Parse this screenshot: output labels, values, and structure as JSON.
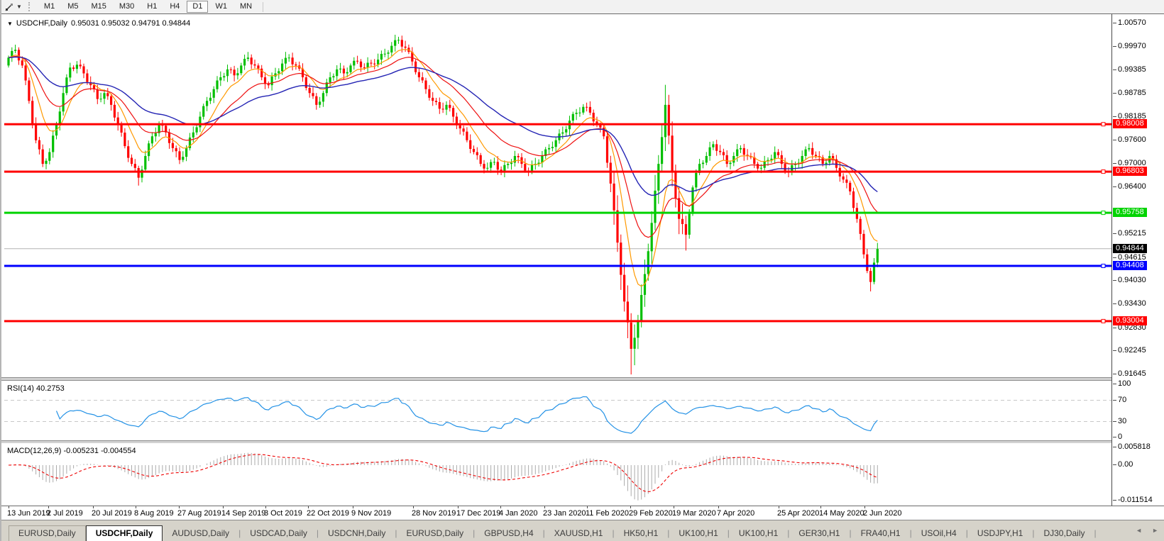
{
  "toolbar": {
    "timeframes": [
      "M1",
      "M5",
      "M15",
      "M30",
      "H1",
      "H4",
      "D1",
      "W1",
      "MN"
    ],
    "active_timeframe": "D1",
    "tool_icon": "line-studies-icon"
  },
  "titlebar": {
    "symbol": "USDCHF,Daily",
    "ohlc": "0.95031 0.95032 0.94791 0.94844"
  },
  "chart_data": {
    "type": "candlestick",
    "symbol": "USDCHF",
    "period": "Daily",
    "ohlc_display": [
      0.95031,
      0.95032,
      0.94791,
      0.94844
    ],
    "price_ticks": [
      "1.00570",
      "0.99970",
      "0.99385",
      "0.98785",
      "0.98185",
      "0.97600",
      "0.97000",
      "0.96400",
      "0.95215",
      "0.94615",
      "0.94030",
      "0.93430",
      "0.92830",
      "0.92245",
      "0.91645"
    ],
    "dates": [
      "13 Jun 2019",
      "2 Jul 2019",
      "20 Jul 2019",
      "8 Aug 2019",
      "27 Aug 2019",
      "14 Sep 2019",
      "3 Oct 2019",
      "22 Oct 2019",
      "9 Nov 2019",
      "28 Nov 2019",
      "17 Dec 2019",
      "4 Jan 2020",
      "23 Jan 2020",
      "11 Feb 2020",
      "29 Feb 2020",
      "19 Mar 2020",
      "7 Apr 2020",
      "25 Apr 2020",
      "14 May 2020",
      "2 Jun 2020"
    ],
    "hlines": [
      {
        "label": "0.98008",
        "price": 0.98008,
        "color": "#ff0000"
      },
      {
        "label": "0.96803",
        "price": 0.96803,
        "color": "#ff0000"
      },
      {
        "label": "0.95758",
        "price": 0.95758,
        "color": "#00d300"
      },
      {
        "label": "0.94408",
        "price": 0.94408,
        "color": "#0000ff"
      },
      {
        "label": "0.93004",
        "price": 0.93004,
        "color": "#ff0000"
      }
    ],
    "current_price": {
      "label": "0.94844",
      "price": 0.94844,
      "bg": "#000000"
    },
    "closes": [
      0.997,
      0.999,
      0.995,
      0.986,
      0.976,
      0.97,
      0.973,
      0.98,
      0.988,
      0.9945,
      0.9952,
      0.993,
      0.99,
      0.9865,
      0.988,
      0.985,
      0.98,
      0.9745,
      0.97,
      0.9665,
      0.972,
      0.977,
      0.98,
      0.978,
      0.974,
      0.971,
      0.974,
      0.978,
      0.982,
      0.986,
      0.989,
      0.992,
      0.994,
      0.9925,
      0.995,
      0.997,
      0.995,
      0.992,
      0.99,
      0.993,
      0.9955,
      0.997,
      0.995,
      0.992,
      0.988,
      0.985,
      0.988,
      0.992,
      0.994,
      0.993,
      0.995,
      0.996,
      0.9945,
      0.9955,
      0.9965,
      0.998,
      1.0,
      1.0015,
      0.9995,
      0.996,
      0.992,
      0.989,
      0.986,
      0.984,
      0.985,
      0.982,
      0.979,
      0.976,
      0.973,
      0.97,
      0.969,
      0.9705,
      0.968,
      0.97,
      0.972,
      0.97,
      0.968,
      0.97,
      0.972,
      0.974,
      0.976,
      0.978,
      0.981,
      0.983,
      0.9845,
      0.983,
      0.98,
      0.977,
      0.965,
      0.95,
      0.935,
      0.923,
      0.93,
      0.942,
      0.955,
      0.97,
      0.985,
      0.968,
      0.956,
      0.952,
      0.964,
      0.97,
      0.972,
      0.975,
      0.973,
      0.97,
      0.972,
      0.974,
      0.972,
      0.97,
      0.969,
      0.971,
      0.973,
      0.97,
      0.968,
      0.97,
      0.972,
      0.974,
      0.972,
      0.97,
      0.972,
      0.969,
      0.966,
      0.963,
      0.956,
      0.947,
      0.94,
      0.9484
    ],
    "wick_overrides": [
      [
        5,
        "l",
        0.9692
      ],
      [
        19,
        "l",
        0.9645
      ],
      [
        57,
        "h",
        1.0023
      ],
      [
        91,
        "l",
        0.9165
      ],
      [
        96,
        "h",
        0.9901
      ],
      [
        126,
        "l",
        0.9376
      ]
    ],
    "volatile_range": [
      88,
      99
    ],
    "colors": {
      "up": "#00bf00",
      "down": "#ff0000",
      "ma_fast": "#ff9900",
      "ma_mid": "#ee1111",
      "ma_slow": "#2424b4",
      "current_line": "#b4b4b4"
    }
  },
  "rsi_panel": {
    "label": "RSI(14) 40.2753",
    "indicator": "RSI",
    "period": 14,
    "value": 40.2753,
    "levels": [
      "100",
      "70",
      "30",
      "0"
    ],
    "dashed_levels": [
      70,
      30
    ],
    "line_color": "#2492e6"
  },
  "macd_panel": {
    "label": "MACD(12,26,9) -0.005231 -0.004554",
    "indicator": "MACD",
    "params": [
      12,
      26,
      9
    ],
    "values": [
      -0.005231,
      -0.004554
    ],
    "levels": [
      "0.005818",
      "0.00",
      "-0.011514"
    ],
    "hist_color": "#ababab",
    "signal_color": "#ee0000"
  },
  "tabs": {
    "active_index": 1,
    "items": [
      "EURUSD,Daily",
      "USDCHF,Daily",
      "AUDUSD,Daily",
      "USDCAD,Daily",
      "USDCNH,Daily",
      "EURUSD,Daily",
      "GBPUSD,H4",
      "XAUUSD,H1",
      "HK50,H1",
      "UK100,H1",
      "UK100,H1",
      "GER30,H1",
      "FRA40,H1",
      "USOil,H4",
      "USDJPY,H1",
      "DJ30,Daily"
    ],
    "arrows": [
      "◄",
      "►"
    ]
  }
}
